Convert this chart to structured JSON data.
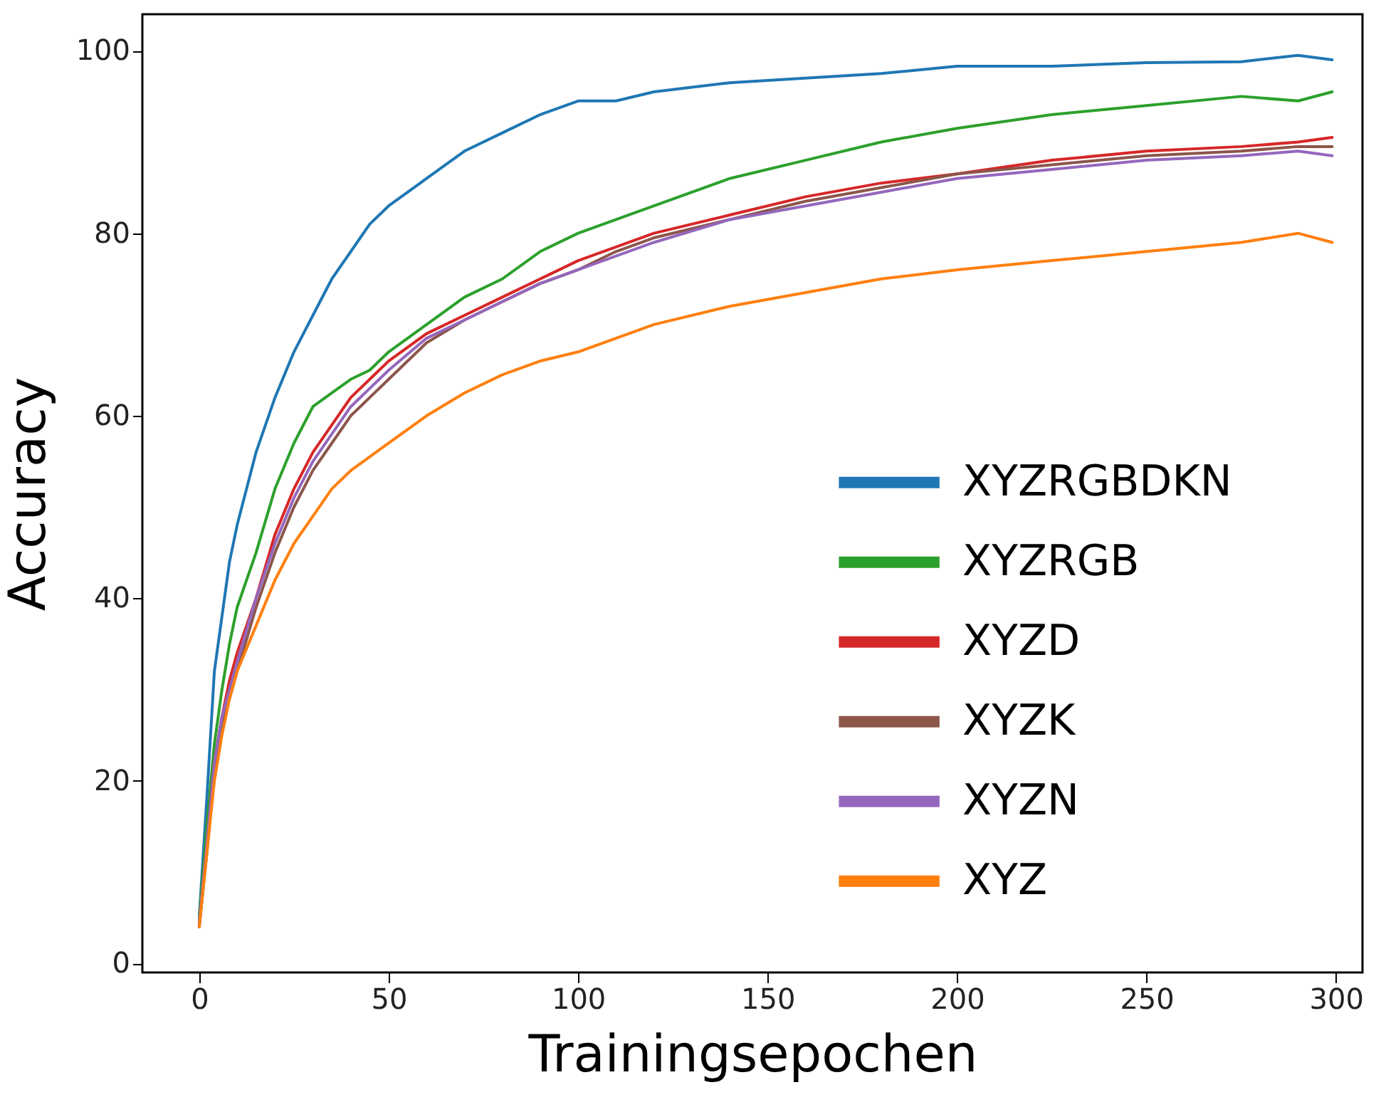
{
  "chart_data": {
    "type": "line",
    "xlabel": "Trainingsepochen",
    "ylabel": "Accuracy",
    "xlim": [
      -15,
      307
    ],
    "ylim": [
      -1,
      104
    ],
    "xticks": [
      0,
      50,
      100,
      150,
      200,
      250,
      300
    ],
    "yticks": [
      0,
      20,
      40,
      60,
      80,
      100
    ],
    "legend": "right",
    "series": [
      {
        "name": "XYZRGBDKN",
        "color": "#1f77b4",
        "x": [
          0,
          2,
          4,
          6,
          8,
          10,
          15,
          20,
          25,
          30,
          35,
          40,
          45,
          50,
          60,
          70,
          80,
          90,
          100,
          110,
          120,
          140,
          160,
          180,
          200,
          225,
          250,
          275,
          290,
          299
        ],
        "values": [
          5,
          18,
          32,
          38,
          44,
          48,
          56,
          62,
          67,
          71,
          75,
          78,
          81,
          83,
          86,
          89,
          91,
          93,
          94.5,
          94.5,
          95.5,
          96.5,
          97,
          97.5,
          98.3,
          98.3,
          98.7,
          98.8,
          99.5,
          99
        ]
      },
      {
        "name": "XYZRGB",
        "color": "#2ca02c",
        "x": [
          0,
          2,
          4,
          6,
          8,
          10,
          15,
          20,
          25,
          30,
          35,
          40,
          45,
          50,
          60,
          70,
          80,
          90,
          100,
          110,
          120,
          140,
          160,
          180,
          200,
          225,
          250,
          275,
          290,
          299
        ],
        "values": [
          5,
          15,
          24,
          30,
          35,
          39,
          45,
          52,
          57,
          61,
          62.5,
          64,
          65,
          67,
          70,
          73,
          75,
          78,
          80,
          81.5,
          83,
          86,
          88,
          90,
          91.5,
          93,
          94,
          95,
          94.5,
          95.5
        ]
      },
      {
        "name": "XYZD",
        "color": "#d62728",
        "x": [
          0,
          2,
          4,
          6,
          8,
          10,
          15,
          20,
          25,
          30,
          35,
          40,
          45,
          50,
          60,
          70,
          80,
          90,
          100,
          110,
          120,
          140,
          160,
          180,
          200,
          225,
          250,
          275,
          290,
          299
        ],
        "values": [
          4,
          13,
          22,
          27,
          31,
          34,
          40,
          47,
          52,
          56,
          59,
          62,
          64,
          66,
          69,
          71,
          73,
          75,
          77,
          78.5,
          80,
          82,
          84,
          85.5,
          86.5,
          88,
          89,
          89.5,
          90,
          90.5
        ]
      },
      {
        "name": "XYZK",
        "color": "#8c564b",
        "x": [
          0,
          2,
          4,
          6,
          8,
          10,
          15,
          20,
          25,
          30,
          35,
          40,
          45,
          50,
          60,
          70,
          80,
          90,
          100,
          110,
          120,
          140,
          160,
          180,
          200,
          225,
          250,
          275,
          290,
          299
        ],
        "values": [
          4,
          12,
          21,
          26,
          29,
          32,
          39,
          45,
          50,
          54,
          57,
          60,
          62,
          64,
          68,
          70.5,
          72.5,
          74.5,
          76,
          78,
          79.5,
          81.5,
          83.5,
          85,
          86.5,
          87.5,
          88.5,
          89,
          89.5,
          89.5
        ]
      },
      {
        "name": "XYZN",
        "color": "#9467bd",
        "x": [
          0,
          2,
          4,
          6,
          8,
          10,
          15,
          20,
          25,
          30,
          35,
          40,
          45,
          50,
          60,
          70,
          80,
          90,
          100,
          110,
          120,
          140,
          160,
          180,
          200,
          225,
          250,
          275,
          290,
          299
        ],
        "values": [
          4.5,
          13,
          22,
          27,
          30,
          33,
          40,
          46,
          51,
          55,
          58,
          61,
          63,
          65,
          68.5,
          70.5,
          72.5,
          74.5,
          76,
          77.5,
          79,
          81.5,
          83,
          84.5,
          86,
          87,
          88,
          88.5,
          89,
          88.5
        ]
      },
      {
        "name": "XYZ",
        "color": "#ff7f0e",
        "x": [
          0,
          2,
          4,
          6,
          8,
          10,
          15,
          20,
          25,
          30,
          35,
          40,
          45,
          50,
          60,
          70,
          80,
          90,
          100,
          110,
          120,
          140,
          160,
          180,
          200,
          225,
          250,
          275,
          290,
          299
        ],
        "values": [
          4,
          12,
          20,
          25,
          29,
          32,
          37,
          42,
          46,
          49,
          52,
          54,
          55.5,
          57,
          60,
          62.5,
          64.5,
          66,
          67,
          68.5,
          70,
          72,
          73.5,
          75,
          76,
          77,
          78,
          79,
          80,
          79
        ]
      }
    ]
  }
}
